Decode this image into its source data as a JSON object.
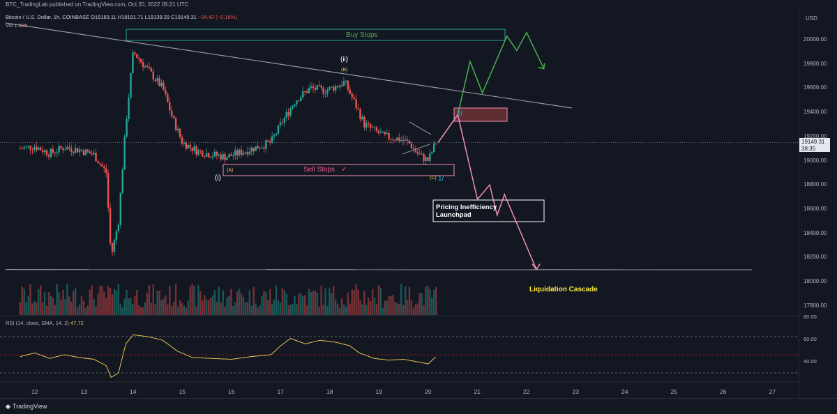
{
  "header": {
    "publisher": "BTC_TradingLab published on TradingView.com, Oct 20, 2022 05:21 UTC"
  },
  "legend": {
    "symbol": "Bitcoin / U.S. Dollar, 1h, COINBASE",
    "open": "O19183.11",
    "high": "H19191.71",
    "low": "L19139.29",
    "close": "C19149.31",
    "change": "−34.42 (−0.18%)",
    "volume_label": "Vol",
    "volume_value": "1.02K",
    "rsi_label": "RSI (14, close, SMA, 14, 2)",
    "rsi_value": "47.72"
  },
  "price_axis": {
    "currency": "USD",
    "last_price": "19149.31",
    "countdown": "38:35"
  },
  "rsi_axis": {
    "ticks": [
      "80.00",
      "60.00",
      "40.00"
    ]
  },
  "colors": {
    "background": "#131722",
    "up": "#26a69a",
    "down": "#ef5350",
    "buy_path": "#4caf50",
    "sell_path": "#f48fb1",
    "rsi_line": "#e5c158",
    "trendline": "#9598a1"
  },
  "annotations": {
    "buy_stops": "Buy Stops",
    "sell_stops": "Sell Stops",
    "sell_check": "✓",
    "wave_ii": "(ii)",
    "wave_i": "(i)",
    "wave_a": "(A)",
    "wave_b": "(B)",
    "wave_c": "(C)",
    "marker_1": "1/",
    "marker_2": "2/",
    "pricing_box": "Pricing Inefficiency Launchpad",
    "liquidation": "Liquidation Cascade"
  },
  "footer": {
    "brand": "TradingView"
  },
  "chart_data": {
    "type": "candlestick",
    "title": "Bitcoin / U.S. Dollar, 1h, COINBASE",
    "y_ticks": [
      20000,
      19800,
      19600,
      19400,
      19200,
      19000,
      18800,
      18600,
      18400,
      18200,
      18000,
      17800
    ],
    "x_ticks": [
      "12",
      "13",
      "14",
      "15",
      "16",
      "17",
      "18",
      "19",
      "20",
      "21",
      "22",
      "23",
      "24",
      "25",
      "26",
      "27"
    ],
    "ylim": [
      17720,
      20200
    ],
    "levels": {
      "horizontal_support": 18100
    },
    "series_close_approx": [
      [
        11.7,
        19100
      ],
      [
        12.0,
        19120
      ],
      [
        12.3,
        19060
      ],
      [
        12.6,
        19110
      ],
      [
        12.9,
        19090
      ],
      [
        13.2,
        19050
      ],
      [
        13.45,
        18900
      ],
      [
        13.55,
        18200
      ],
      [
        13.7,
        18500
      ],
      [
        13.85,
        19300
      ],
      [
        14.0,
        19900
      ],
      [
        14.2,
        19800
      ],
      [
        14.4,
        19700
      ],
      [
        14.6,
        19600
      ],
      [
        14.8,
        19350
      ],
      [
        15.0,
        19150
      ],
      [
        15.3,
        19080
      ],
      [
        15.6,
        19050
      ],
      [
        15.9,
        19030
      ],
      [
        16.2,
        19070
      ],
      [
        16.5,
        19110
      ],
      [
        16.8,
        19150
      ],
      [
        17.0,
        19300
      ],
      [
        17.3,
        19500
      ],
      [
        17.6,
        19600
      ],
      [
        17.9,
        19580
      ],
      [
        18.1,
        19610
      ],
      [
        18.3,
        19650
      ],
      [
        18.5,
        19480
      ],
      [
        18.7,
        19300
      ],
      [
        18.9,
        19250
      ],
      [
        19.1,
        19200
      ],
      [
        19.4,
        19180
      ],
      [
        19.6,
        19150
      ],
      [
        19.8,
        19050
      ],
      [
        20.0,
        19000
      ],
      [
        20.15,
        19149
      ]
    ],
    "projection_buy": [
      [
        20.2,
        19150
      ],
      [
        20.6,
        19380
      ],
      [
        20.85,
        19820
      ],
      [
        21.1,
        19560
      ],
      [
        21.6,
        20030
      ],
      [
        21.8,
        19910
      ],
      [
        22.0,
        20060
      ],
      [
        22.35,
        19760
      ]
    ],
    "projection_sell": [
      [
        20.2,
        19150
      ],
      [
        20.6,
        19380
      ],
      [
        21.0,
        18680
      ],
      [
        21.25,
        18800
      ],
      [
        21.4,
        18550
      ],
      [
        21.55,
        18720
      ],
      [
        22.2,
        18100
      ]
    ],
    "rsi_values": [
      [
        11.7,
        48
      ],
      [
        12.0,
        52
      ],
      [
        12.3,
        46
      ],
      [
        12.6,
        50
      ],
      [
        12.9,
        47
      ],
      [
        13.2,
        45
      ],
      [
        13.45,
        38
      ],
      [
        13.55,
        25
      ],
      [
        13.7,
        30
      ],
      [
        13.85,
        62
      ],
      [
        14.0,
        72
      ],
      [
        14.3,
        70
      ],
      [
        14.6,
        66
      ],
      [
        14.9,
        54
      ],
      [
        15.2,
        47
      ],
      [
        15.6,
        46
      ],
      [
        16.0,
        45
      ],
      [
        16.4,
        48
      ],
      [
        16.8,
        50
      ],
      [
        17.0,
        60
      ],
      [
        17.2,
        68
      ],
      [
        17.5,
        62
      ],
      [
        17.8,
        66
      ],
      [
        18.1,
        64
      ],
      [
        18.4,
        60
      ],
      [
        18.6,
        52
      ],
      [
        18.9,
        46
      ],
      [
        19.2,
        44
      ],
      [
        19.5,
        45
      ],
      [
        19.8,
        42
      ],
      [
        20.0,
        40
      ],
      [
        20.15,
        47.72
      ]
    ],
    "volume_values": [
      [
        11.8,
        0.4
      ],
      [
        12.2,
        0.5
      ],
      [
        12.6,
        0.6
      ],
      [
        13.0,
        0.7
      ],
      [
        13.5,
        1.0
      ],
      [
        13.9,
        0.9
      ],
      [
        14.2,
        0.7
      ],
      [
        14.6,
        0.8
      ],
      [
        15.0,
        0.5
      ],
      [
        15.5,
        0.4
      ],
      [
        16.0,
        0.45
      ],
      [
        16.5,
        0.35
      ],
      [
        17.0,
        0.6
      ],
      [
        17.5,
        0.55
      ],
      [
        18.0,
        0.6
      ],
      [
        18.5,
        0.5
      ],
      [
        19.0,
        0.45
      ],
      [
        19.5,
        0.55
      ],
      [
        20.0,
        0.6
      ]
    ]
  }
}
